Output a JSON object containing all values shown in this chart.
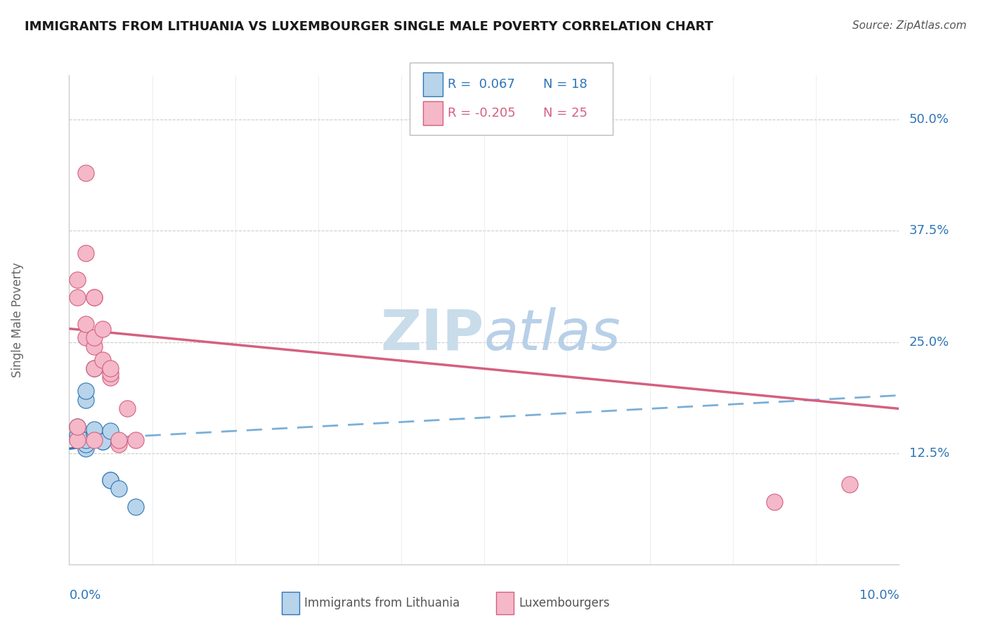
{
  "title": "IMMIGRANTS FROM LITHUANIA VS LUXEMBOURGER SINGLE MALE POVERTY CORRELATION CHART",
  "source": "Source: ZipAtlas.com",
  "ylabel": "Single Male Poverty",
  "y_tick_labels": [
    "12.5%",
    "25.0%",
    "37.5%",
    "50.0%"
  ],
  "y_tick_values": [
    0.125,
    0.25,
    0.375,
    0.5
  ],
  "x_lim": [
    0.0,
    0.1
  ],
  "y_lim": [
    0.0,
    0.55
  ],
  "legend_r1": "R =  0.067",
  "legend_n1": "N = 18",
  "legend_r2": "R = -0.205",
  "legend_n2": "N = 25",
  "blue_face": "#b8d4ea",
  "blue_edge": "#2e75b6",
  "pink_face": "#f4b8c8",
  "pink_edge": "#d46080",
  "blue_line": "#2e75b6",
  "pink_line": "#d46080",
  "dashed_line": "#7ab0d8",
  "grid_color": "#cccccc",
  "right_label_color": "#2e75b6",
  "watermark_color": "#d0e4f0",
  "blue_x": [
    0.001,
    0.001,
    0.002,
    0.002,
    0.002,
    0.002,
    0.002,
    0.003,
    0.003,
    0.003,
    0.003,
    0.004,
    0.004,
    0.005,
    0.005,
    0.005,
    0.006,
    0.008
  ],
  "blue_y": [
    0.145,
    0.155,
    0.13,
    0.135,
    0.14,
    0.185,
    0.195,
    0.148,
    0.148,
    0.152,
    0.22,
    0.138,
    0.138,
    0.095,
    0.095,
    0.15,
    0.085,
    0.065
  ],
  "pink_x": [
    0.001,
    0.001,
    0.001,
    0.001,
    0.002,
    0.002,
    0.002,
    0.002,
    0.003,
    0.003,
    0.003,
    0.003,
    0.003,
    0.003,
    0.004,
    0.004,
    0.005,
    0.005,
    0.005,
    0.006,
    0.006,
    0.007,
    0.008,
    0.085,
    0.094
  ],
  "pink_y": [
    0.14,
    0.155,
    0.3,
    0.32,
    0.255,
    0.27,
    0.35,
    0.44,
    0.245,
    0.255,
    0.3,
    0.3,
    0.22,
    0.14,
    0.23,
    0.265,
    0.21,
    0.215,
    0.22,
    0.135,
    0.14,
    0.175,
    0.14,
    0.07,
    0.09
  ],
  "blue_trendline_x": [
    0.0,
    0.008
  ],
  "blue_trendline_y": [
    0.13,
    0.14
  ],
  "pink_trendline_x": [
    0.0,
    0.1
  ],
  "pink_trendline_y": [
    0.265,
    0.175
  ],
  "dash_trendline_x": [
    0.0,
    0.1
  ],
  "dash_trendline_y": [
    0.14,
    0.19
  ]
}
